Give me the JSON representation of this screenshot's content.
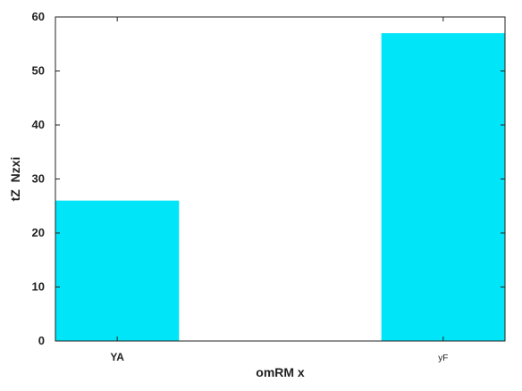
{
  "chart_data": {
    "type": "bar",
    "title": "",
    "xlabel": "omRM x",
    "ylabel": "tZ  Nzxi",
    "categories": [
      "YA",
      "yF"
    ],
    "values": [
      26,
      57
    ],
    "ylim": [
      0,
      60
    ],
    "yticks": [
      0,
      10,
      20,
      30,
      40,
      50,
      60
    ],
    "grid": false,
    "bar_color": "#00e5f8"
  }
}
